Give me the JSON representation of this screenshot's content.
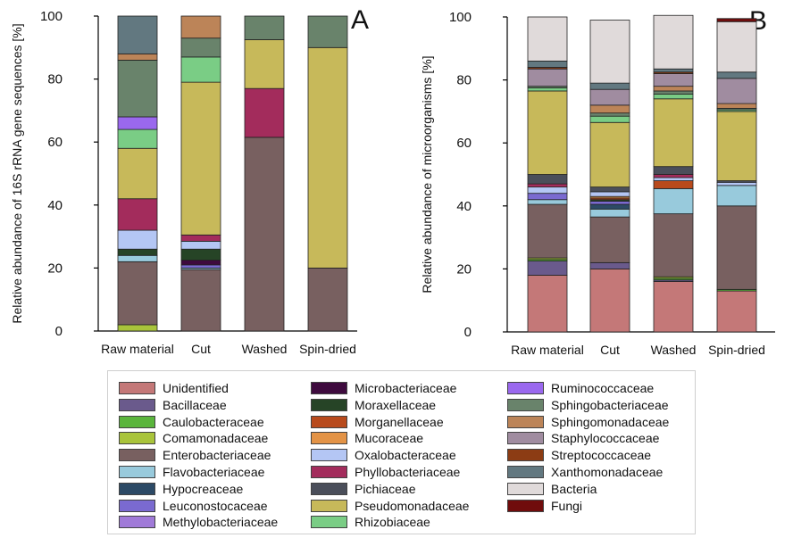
{
  "taxa": [
    {
      "name": "Unidentified",
      "color": "#c47878"
    },
    {
      "name": "Bacillaceae",
      "color": "#6a5a8c"
    },
    {
      "name": "Caulobacteraceae",
      "color": "#5ab53c"
    },
    {
      "name": "Comamonadaceae",
      "color": "#a9c43b"
    },
    {
      "name": "Enterobacteriaceae",
      "color": "#786060"
    },
    {
      "name": "Flavobacteriaceae",
      "color": "#98cadc"
    },
    {
      "name": "Hypocreaceae",
      "color": "#2c4a66"
    },
    {
      "name": "Leuconostocaceae",
      "color": "#7a6ad0"
    },
    {
      "name": "Methylobacteriaceae",
      "color": "#a07ad8"
    },
    {
      "name": "Microbacteriaceae",
      "color": "#3e0a3e"
    },
    {
      "name": "Moraxellaceae",
      "color": "#264426"
    },
    {
      "name": "Morganellaceae",
      "color": "#b84a1c"
    },
    {
      "name": "Mucoraceae",
      "color": "#e39346"
    },
    {
      "name": "Oxalobacteraceae",
      "color": "#b4c6f4"
    },
    {
      "name": "Phyllobacteriaceae",
      "color": "#a32c5c"
    },
    {
      "name": "Pichiaceae",
      "color": "#4a4e5a"
    },
    {
      "name": "Pseudomonadaceae",
      "color": "#c7b95a"
    },
    {
      "name": "Rhizobiaceae",
      "color": "#7acd85"
    },
    {
      "name": "Ruminococcaceae",
      "color": "#9a68ee"
    },
    {
      "name": "Sphingobacteriaceae",
      "color": "#69836b"
    },
    {
      "name": "Sphingomonadaceae",
      "color": "#bc8458"
    },
    {
      "name": "Staphylococcaceae",
      "color": "#a08ca0"
    },
    {
      "name": "Streptococcaceae",
      "color": "#8c3c14"
    },
    {
      "name": "Xanthomonadaceae",
      "color": "#627880"
    },
    {
      "name": "Bacteria",
      "color": "#e0dada"
    },
    {
      "name": "Fungi",
      "color": "#700c0c"
    }
  ],
  "chart_data": [
    {
      "type": "bar",
      "stacked": true,
      "panel_label": "A",
      "ylabel": "Relative abundance of 16S rRNA gene sequences [%]",
      "ylim": [
        0,
        100
      ],
      "yticks": [
        0,
        20,
        40,
        60,
        80,
        100
      ],
      "categories": [
        "Raw material",
        "Cut",
        "Washed",
        "Spin-dried"
      ],
      "series": [
        {
          "name": "Unidentified",
          "values": [
            0,
            0,
            0,
            0
          ]
        },
        {
          "name": "Bacillaceae",
          "values": [
            0,
            0,
            0,
            0
          ]
        },
        {
          "name": "Caulobacteraceae",
          "values": [
            0,
            0,
            0,
            0
          ]
        },
        {
          "name": "Comamonadaceae",
          "values": [
            2,
            0,
            0,
            0
          ]
        },
        {
          "name": "Enterobacteriaceae",
          "values": [
            20,
            19.5,
            61.5,
            20
          ]
        },
        {
          "name": "Flavobacteriaceae",
          "values": [
            2,
            0.5,
            0,
            0
          ]
        },
        {
          "name": "Hypocreaceae",
          "values": [
            0,
            0,
            0,
            0
          ]
        },
        {
          "name": "Leuconostocaceae",
          "values": [
            0,
            1,
            0,
            0
          ]
        },
        {
          "name": "Methylobacteriaceae",
          "values": [
            0,
            0,
            0,
            0
          ]
        },
        {
          "name": "Microbacteriaceae",
          "values": [
            0,
            1.5,
            0,
            0
          ]
        },
        {
          "name": "Moraxellaceae",
          "values": [
            2,
            3.5,
            0,
            0
          ]
        },
        {
          "name": "Morganellaceae",
          "values": [
            0,
            0,
            0,
            0
          ]
        },
        {
          "name": "Mucoraceae",
          "values": [
            0,
            0,
            0,
            0
          ]
        },
        {
          "name": "Oxalobacteraceae",
          "values": [
            6,
            2.5,
            0,
            0
          ]
        },
        {
          "name": "Phyllobacteriaceae",
          "values": [
            10,
            2,
            15.5,
            0
          ]
        },
        {
          "name": "Pichiaceae",
          "values": [
            0,
            0,
            0,
            0
          ]
        },
        {
          "name": "Pseudomonadaceae",
          "values": [
            16,
            48.5,
            15.5,
            70
          ]
        },
        {
          "name": "Rhizobiaceae",
          "values": [
            6,
            8,
            0,
            0
          ]
        },
        {
          "name": "Ruminococcaceae",
          "values": [
            4,
            0,
            0,
            0
          ]
        },
        {
          "name": "Sphingobacteriaceae",
          "values": [
            18,
            6,
            7.5,
            10
          ]
        },
        {
          "name": "Sphingomonadaceae",
          "values": [
            2,
            7,
            0,
            0
          ]
        },
        {
          "name": "Staphylococcaceae",
          "values": [
            0,
            0,
            0,
            0
          ]
        },
        {
          "name": "Streptococcaceae",
          "values": [
            0,
            0,
            0,
            0
          ]
        },
        {
          "name": "Xanthomonadaceae",
          "values": [
            12,
            0,
            0,
            0
          ]
        },
        {
          "name": "Bacteria",
          "values": [
            0,
            0,
            0,
            0
          ]
        },
        {
          "name": "Fungi",
          "values": [
            0,
            0,
            0,
            0
          ]
        }
      ]
    },
    {
      "type": "bar",
      "stacked": true,
      "panel_label": "B",
      "ylabel": "Relative abundance of microorganisms [%]",
      "ylim": [
        0,
        100
      ],
      "yticks": [
        0,
        20,
        40,
        60,
        80,
        100
      ],
      "categories": [
        "Raw material",
        "Cut",
        "Washed",
        "Spin-dried"
      ],
      "series": [
        {
          "name": "Unidentified",
          "values": [
            18,
            20,
            16,
            13
          ]
        },
        {
          "name": "Bacillaceae",
          "values": [
            4.5,
            2,
            0.5,
            0
          ]
        },
        {
          "name": "Caulobacteraceae",
          "values": [
            0.5,
            0,
            0.5,
            0.5
          ]
        },
        {
          "name": "Comamonadaceae",
          "values": [
            0.5,
            0,
            0.5,
            0
          ]
        },
        {
          "name": "Enterobacteriaceae",
          "values": [
            17,
            14.5,
            20,
            26.5
          ]
        },
        {
          "name": "Flavobacteriaceae",
          "values": [
            1.5,
            2.5,
            8,
            6.5
          ]
        },
        {
          "name": "Hypocreaceae",
          "values": [
            0,
            1.5,
            0,
            0
          ]
        },
        {
          "name": "Leuconostocaceae",
          "values": [
            2,
            1,
            0,
            0
          ]
        },
        {
          "name": "Methylobacteriaceae",
          "values": [
            0,
            0,
            0,
            0
          ]
        },
        {
          "name": "Microbacteriaceae",
          "values": [
            0,
            0,
            0,
            0
          ]
        },
        {
          "name": "Moraxellaceae",
          "values": [
            0,
            0.5,
            0,
            0
          ]
        },
        {
          "name": "Morganellaceae",
          "values": [
            0,
            0.5,
            2.5,
            0
          ]
        },
        {
          "name": "Mucoraceae",
          "values": [
            0,
            0.5,
            0,
            0
          ]
        },
        {
          "name": "Oxalobacteraceae",
          "values": [
            2,
            1.5,
            1,
            1
          ]
        },
        {
          "name": "Phyllobacteriaceae",
          "values": [
            1,
            0,
            1,
            0
          ]
        },
        {
          "name": "Pichiaceae",
          "values": [
            3,
            1.5,
            2.5,
            0.5
          ]
        },
        {
          "name": "Pseudomonadaceae",
          "values": [
            26.5,
            20.5,
            21.5,
            22
          ]
        },
        {
          "name": "Rhizobiaceae",
          "values": [
            1,
            2,
            1.5,
            0.5
          ]
        },
        {
          "name": "Ruminococcaceae",
          "values": [
            0,
            0,
            0,
            0
          ]
        },
        {
          "name": "Sphingobacteriaceae",
          "values": [
            0.5,
            1,
            1,
            0.5
          ]
        },
        {
          "name": "Sphingomonadaceae",
          "values": [
            0,
            2.5,
            1.5,
            1.5
          ]
        },
        {
          "name": "Staphylococcaceae",
          "values": [
            5.5,
            5,
            4,
            8
          ]
        },
        {
          "name": "Streptococcaceae",
          "values": [
            0.5,
            0,
            0.5,
            0
          ]
        },
        {
          "name": "Xanthomonadaceae",
          "values": [
            2,
            2,
            1,
            2
          ]
        },
        {
          "name": "Bacteria",
          "values": [
            14,
            20,
            17,
            16
          ]
        },
        {
          "name": "Fungi",
          "values": [
            0,
            0,
            0,
            1
          ]
        }
      ]
    }
  ]
}
